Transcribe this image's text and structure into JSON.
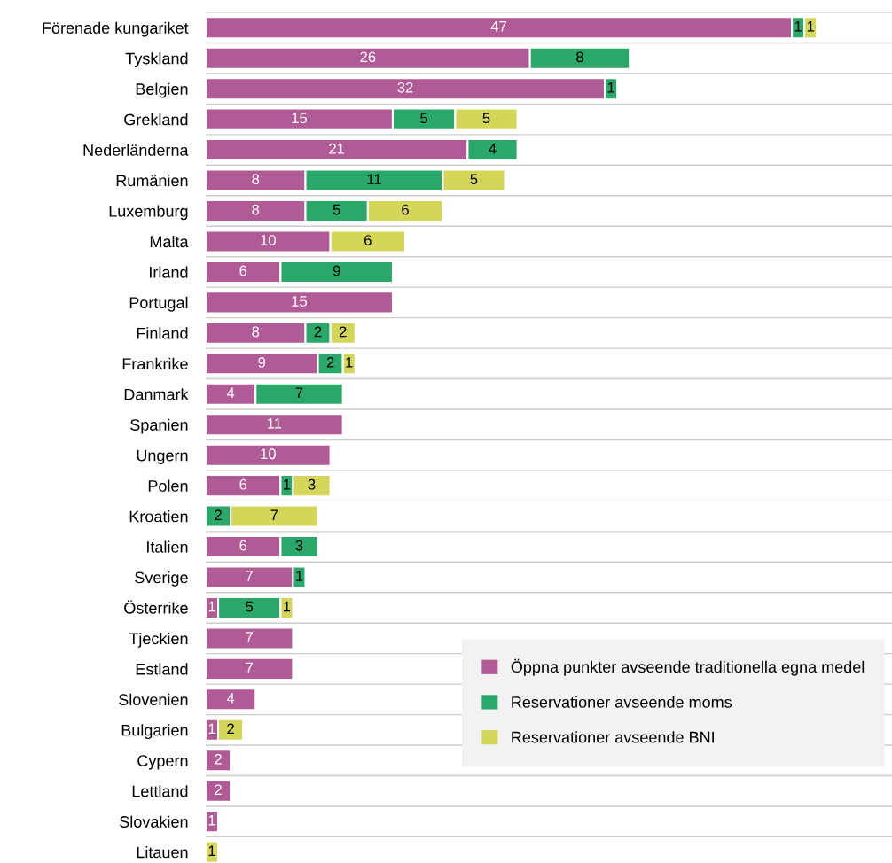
{
  "chart_data": {
    "type": "bar",
    "orientation": "horizontal",
    "stacked": true,
    "data_labels": true,
    "grid": "y",
    "legend": "bottom right",
    "categories": [
      "Förenade kungariket",
      "Tyskland",
      "Belgien",
      "Grekland",
      "Nederländerna",
      "Rumänien",
      "Luxemburg",
      "Malta",
      "Irland",
      "Portugal",
      "Finland",
      "Frankrike",
      "Danmark",
      "Spanien",
      "Ungern",
      "Polen",
      "Kroatien",
      "Italien",
      "Sverige",
      "Österrike",
      "Tjeckien",
      "Estland",
      "Slovenien",
      "Bulgarien",
      "Cypern",
      "Lettland",
      "Slovakien",
      "Litauen"
    ],
    "series": [
      {
        "name": "Öppna punkter avseende traditionella egna medel",
        "color": "#b05a96",
        "values": [
          47,
          26,
          32,
          15,
          21,
          8,
          8,
          10,
          6,
          15,
          8,
          9,
          4,
          11,
          10,
          6,
          null,
          6,
          7,
          1,
          7,
          7,
          4,
          1,
          2,
          2,
          1,
          null
        ]
      },
      {
        "name": "Reservationer avseende moms",
        "color": "#2aa86a",
        "values": [
          1,
          8,
          1,
          5,
          4,
          11,
          5,
          null,
          9,
          null,
          2,
          2,
          7,
          null,
          null,
          1,
          2,
          3,
          1,
          5,
          null,
          null,
          null,
          null,
          null,
          null,
          null,
          null
        ]
      },
      {
        "name": "Reservationer avseende BNI",
        "color": "#d4d65a",
        "values": [
          1,
          null,
          null,
          5,
          null,
          5,
          6,
          6,
          null,
          null,
          2,
          1,
          null,
          null,
          null,
          3,
          7,
          null,
          null,
          1,
          null,
          null,
          null,
          2,
          null,
          null,
          null,
          1
        ]
      }
    ]
  }
}
